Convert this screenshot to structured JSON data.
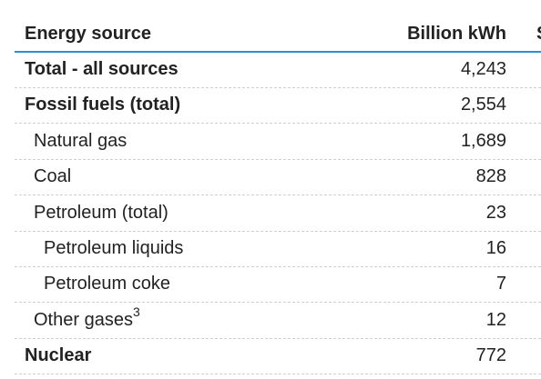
{
  "table": {
    "columns": [
      "Energy source",
      "Billion kWh",
      "S"
    ],
    "rows": [
      {
        "label": "Total - all sources",
        "value": "4,243"
      },
      {
        "label": "Fossil fuels (total)",
        "value": "2,554"
      },
      {
        "label": "Natural gas",
        "value": "1,689"
      },
      {
        "label": "Coal",
        "value": "828"
      },
      {
        "label": "Petroleum (total)",
        "value": "23"
      },
      {
        "label": "Petroleum liquids",
        "value": "16"
      },
      {
        "label": "Petroleum coke",
        "value": "7"
      },
      {
        "label": "Other gases",
        "footnote": "3",
        "value": "12"
      },
      {
        "label": "Nuclear",
        "value": "772"
      }
    ]
  }
}
